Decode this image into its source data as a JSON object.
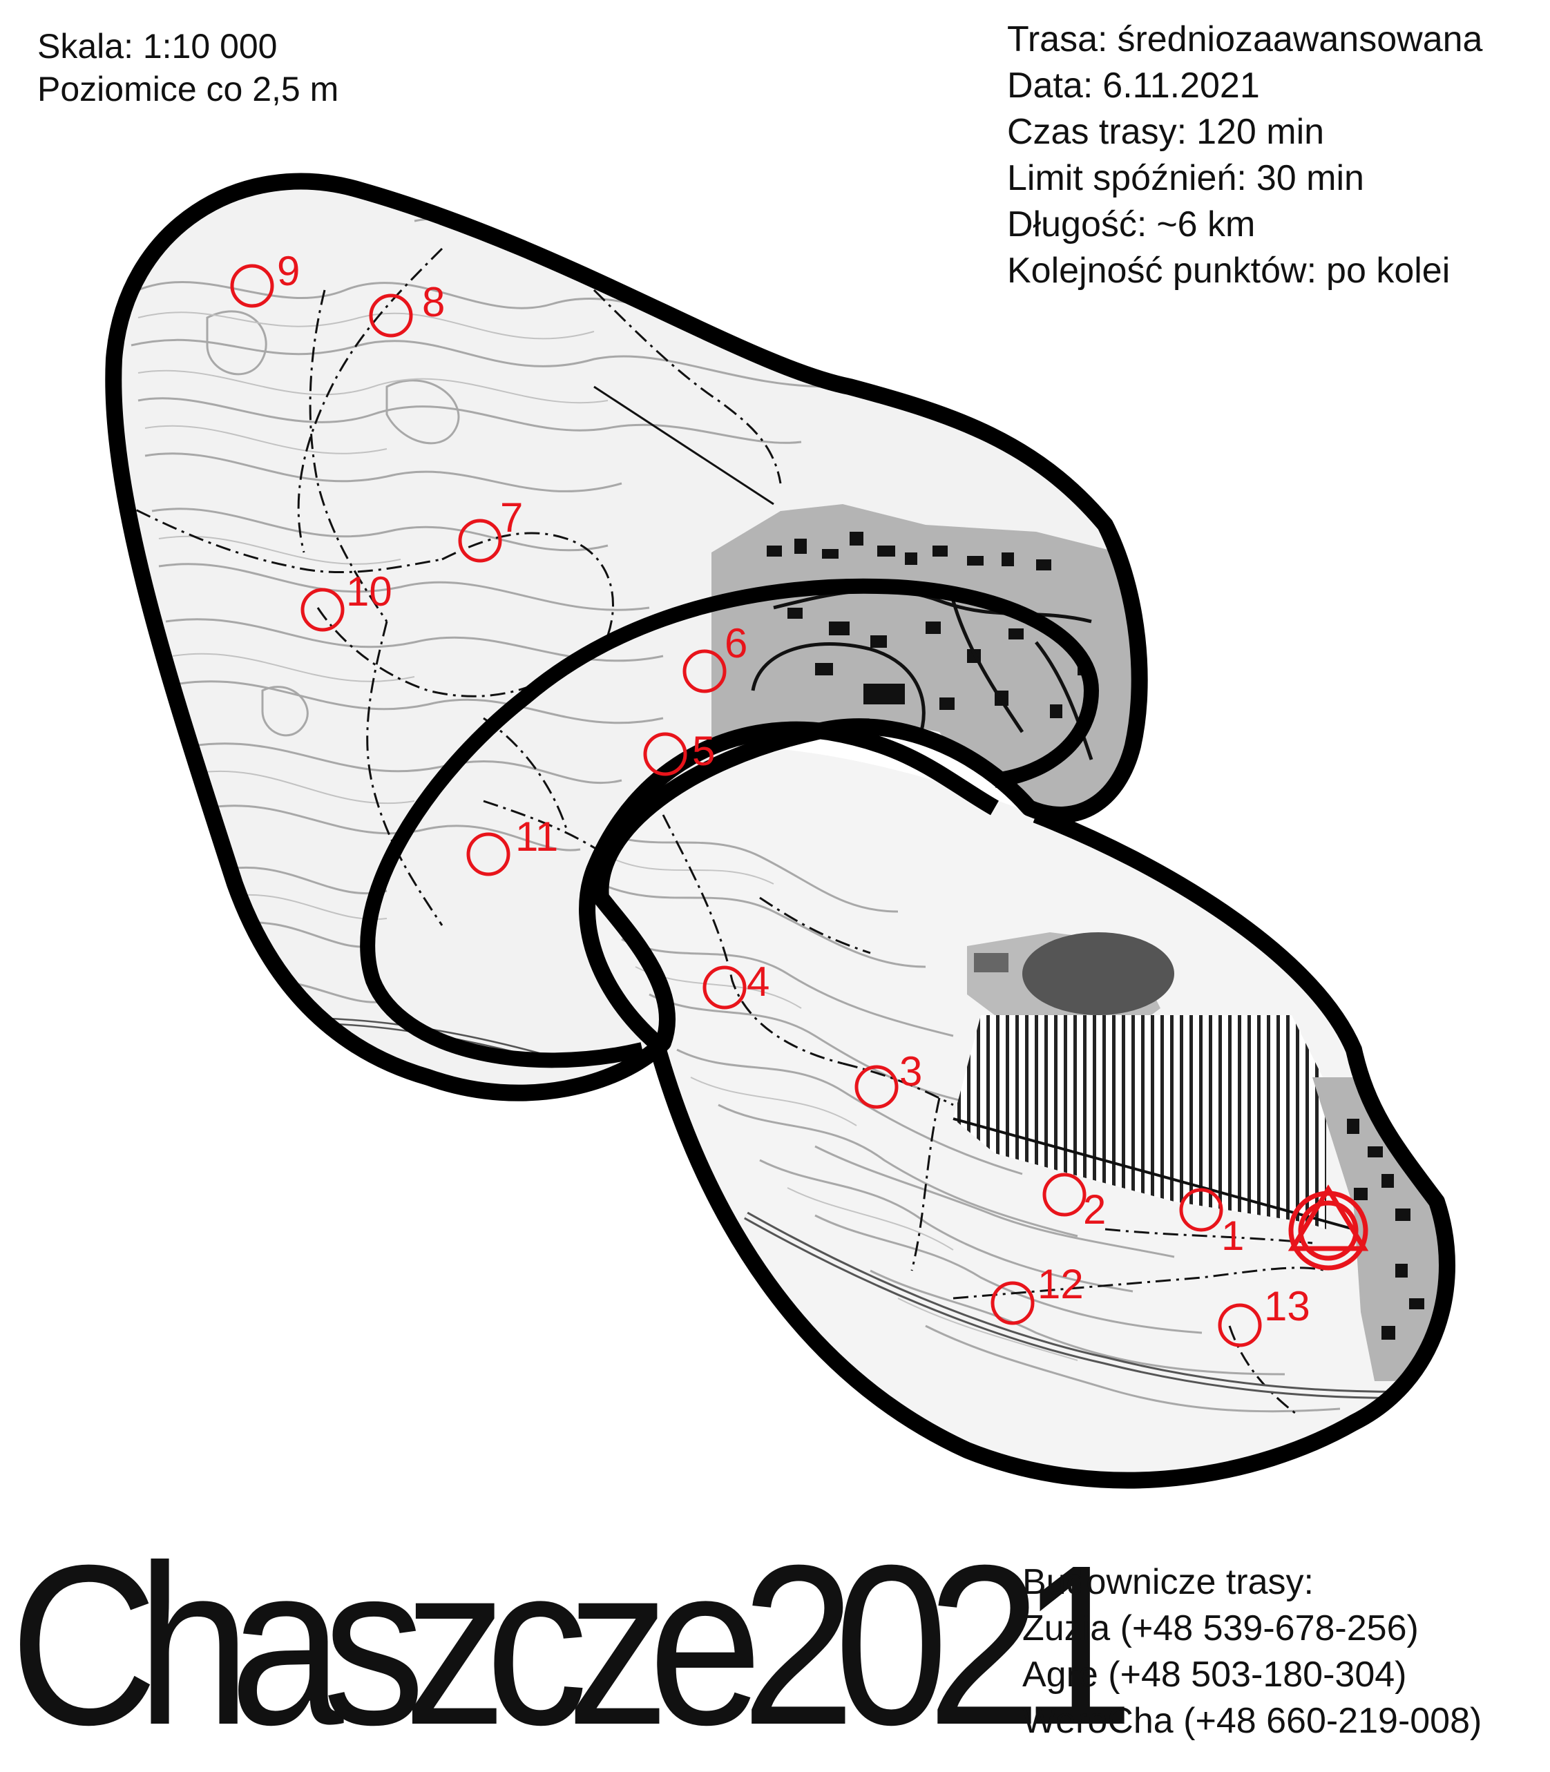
{
  "map_header": {
    "scale": "Skala: 1:10 000",
    "contours": "Poziomice co 2,5 m"
  },
  "course_info": [
    {
      "label": "Trasa:",
      "value": "średniozaawansowana"
    },
    {
      "label": "Data:",
      "value": "6.11.2021"
    },
    {
      "label": "Czas trasy:",
      "value": "120 min"
    },
    {
      "label": "Limit spóźnień:",
      "value": "30 min"
    },
    {
      "label": "Długość:",
      "value": "~6 km"
    },
    {
      "label": "Kolejność punktów:",
      "value": "po kolei"
    }
  ],
  "event_title": "Chaszcze2021",
  "builders": {
    "heading": "Budownicze trasy:",
    "people": [
      "Zuzia (+48 539-678-256)",
      "Agre (+48 503-180-304)",
      "WeroCha (+48 660-219-008)"
    ]
  },
  "controls": [
    {
      "label": "1"
    },
    {
      "label": "2"
    },
    {
      "label": "3"
    },
    {
      "label": "4"
    },
    {
      "label": "5"
    },
    {
      "label": "6"
    },
    {
      "label": "7"
    },
    {
      "label": "8"
    },
    {
      "label": "9"
    },
    {
      "label": "10"
    },
    {
      "label": "11"
    },
    {
      "label": "12"
    },
    {
      "label": "13"
    }
  ],
  "colors": {
    "control": "#e8141b",
    "outline": "#000000",
    "built_area": "#b4b4b4",
    "contour": "#9a9a9a"
  },
  "icons": {
    "start": "start-triangle-icon",
    "finish": "finish-double-circle-icon"
  }
}
